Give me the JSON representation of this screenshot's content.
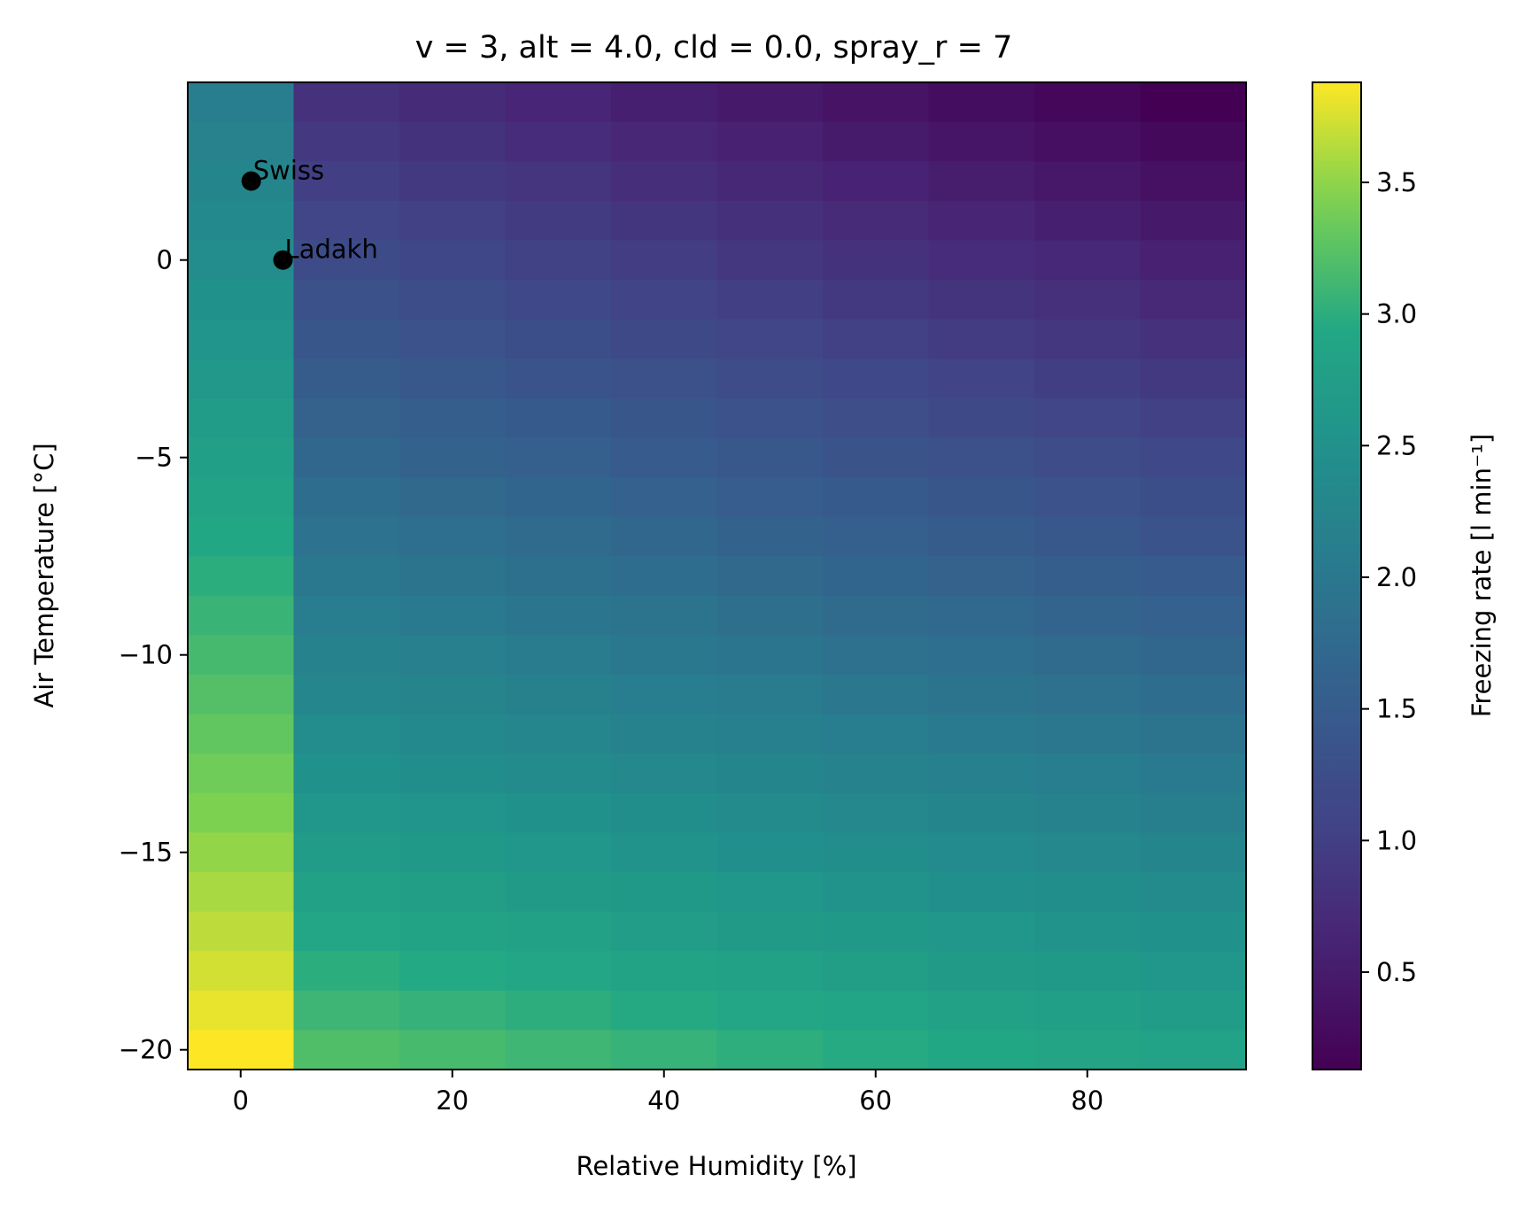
{
  "chart_data": {
    "type": "heatmap",
    "title": "v = 3, alt = 4.0, cld = 0.0, spray_r = 7",
    "xlabel": "Relative Humidity [%]",
    "ylabel": "Air Temperature [°C]",
    "colorbar_label": "Freezing rate [l min⁻¹]",
    "colormap": "viridis",
    "xlim": [
      -5,
      95
    ],
    "ylim": [
      -20.5,
      4.5
    ],
    "clim": [
      0.13,
      3.88
    ],
    "x_ticks": [
      0,
      20,
      40,
      60,
      80
    ],
    "x_tick_labels": [
      "0",
      "20",
      "40",
      "60",
      "80"
    ],
    "y_ticks": [
      0,
      -5,
      -10,
      -15,
      -20
    ],
    "y_tick_labels": [
      "0",
      "−5",
      "−10",
      "−15",
      "−20"
    ],
    "colorbar_ticks": [
      0.5,
      1.0,
      1.5,
      2.0,
      2.5,
      3.0,
      3.5
    ],
    "colorbar_tick_labels": [
      "0.5",
      "1.0",
      "1.5",
      "2.0",
      "2.5",
      "3.0",
      "3.5"
    ],
    "x_centers": [
      0,
      10,
      20,
      30,
      40,
      50,
      60,
      70,
      80,
      90
    ],
    "y_centers": [
      4,
      3,
      2,
      1,
      0,
      -1,
      -2,
      -3,
      -4,
      -5,
      -6,
      -7,
      -8,
      -9,
      -10,
      -11,
      -12,
      -13,
      -14,
      -15,
      -16,
      -17,
      -18,
      -19,
      -20
    ],
    "z_first_column_top": 2.12,
    "z_first_column_bottom": 3.88,
    "z_rest_top_left": 0.8,
    "z_rest_top_right": 0.13,
    "z_rest_bottom_left": 3.2,
    "z_rest_bottom_right": 2.82,
    "grid": false,
    "points": [
      {
        "label": "Swiss",
        "x": 1,
        "y": 2
      },
      {
        "label": "Ladakh",
        "x": 4,
        "y": 0
      }
    ]
  }
}
